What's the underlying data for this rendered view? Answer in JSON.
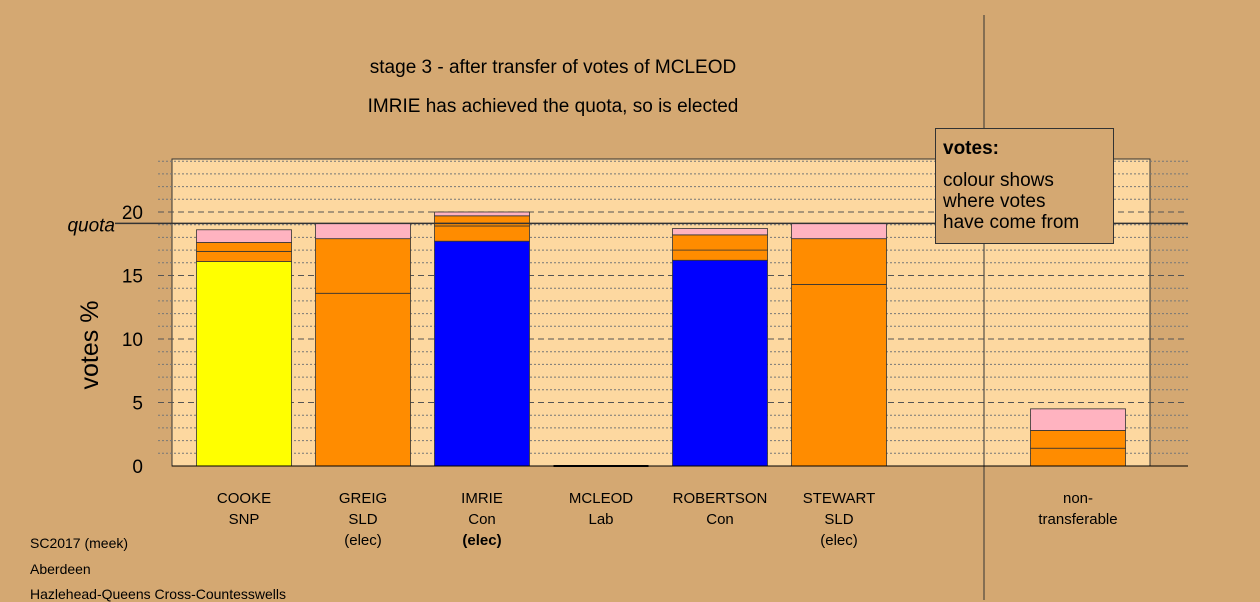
{
  "chart_data": {
    "type": "bar",
    "stacked": true,
    "title": "stage 3 - after transfer of votes of MCLEOD",
    "subtitle": "IMRIE has achieved the quota, so is elected",
    "ylabel": "votes %",
    "quota_label": "quota",
    "quota": 19.1,
    "ylim": [
      0,
      24
    ],
    "yticks": [
      0,
      5,
      10,
      15,
      20
    ],
    "grid": "dotted minor, dashed major",
    "colors": {
      "SNP": "#ffff00",
      "Con": "#0000ff",
      "SLD": "#ff8c00",
      "Lab": "#ff0000",
      "transfer": "#ffb3c0",
      "panel": "#fdd8a0",
      "background": "#d4a872"
    },
    "categories": [
      {
        "name": "COOKE",
        "party": "SNP",
        "status": "",
        "bold": false
      },
      {
        "name": "GREIG",
        "party": "SLD",
        "status": "(elec)",
        "bold": false
      },
      {
        "name": "IMRIE",
        "party": "Con",
        "status": "(elec)",
        "bold": true
      },
      {
        "name": "MCLEOD",
        "party": "Lab",
        "status": "",
        "bold": false
      },
      {
        "name": "ROBERTSON",
        "party": "Con",
        "status": "",
        "bold": false
      },
      {
        "name": "STEWART",
        "party": "SLD",
        "status": "(elec)",
        "bold": false
      },
      {
        "name": "non-",
        "party": "transferable",
        "status": "",
        "bold": false
      }
    ],
    "stacks": [
      [
        {
          "v": 16.1,
          "c": "SNP"
        },
        {
          "v": 0.8,
          "c": "SLD"
        },
        {
          "v": 0.7,
          "c": "SLD"
        },
        {
          "v": 1.0,
          "c": "transfer"
        }
      ],
      [
        {
          "v": 13.6,
          "c": "SLD"
        },
        {
          "v": 4.3,
          "c": "SLD"
        },
        {
          "v": 1.2,
          "c": "transfer"
        }
      ],
      [
        {
          "v": 17.7,
          "c": "Con"
        },
        {
          "v": 1.2,
          "c": "SLD"
        },
        {
          "v": 0.8,
          "c": "SLD"
        },
        {
          "v": 0.3,
          "c": "transfer"
        }
      ],
      [],
      [
        {
          "v": 16.2,
          "c": "Con"
        },
        {
          "v": 0.8,
          "c": "SLD"
        },
        {
          "v": 1.2,
          "c": "SLD"
        },
        {
          "v": 0.5,
          "c": "transfer"
        }
      ],
      [
        {
          "v": 14.3,
          "c": "SLD"
        },
        {
          "v": 3.6,
          "c": "SLD"
        },
        {
          "v": 1.2,
          "c": "transfer"
        }
      ],
      [
        {
          "v": 1.4,
          "c": "SLD"
        },
        {
          "v": 1.4,
          "c": "SLD"
        },
        {
          "v": 1.7,
          "c": "transfer"
        }
      ]
    ],
    "legend": {
      "title": "votes:",
      "lines": [
        "colour shows",
        "where votes",
        "have come from"
      ],
      "position": "top-right"
    }
  },
  "footer": {
    "line1": "SC2017 (meek)",
    "line2": "Aberdeen",
    "line3": "Hazlehead-Queens Cross-Countesswells"
  }
}
